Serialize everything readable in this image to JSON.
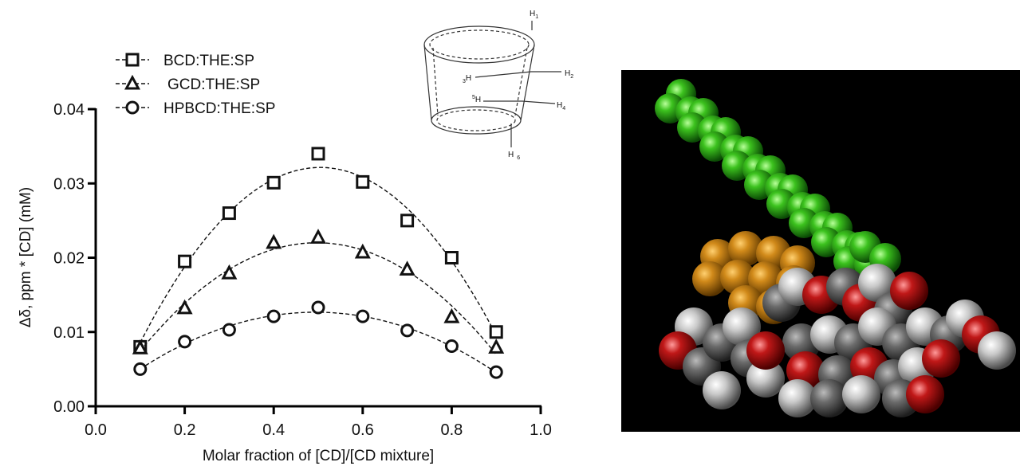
{
  "chart_data": {
    "type": "scatter",
    "xlabel": "Molar fraction of [CD]/[CD mixture]",
    "ylabel": "Δδ, ppm * [CD] (mM)",
    "x": [
      0.1,
      0.2,
      0.3,
      0.4,
      0.5,
      0.6,
      0.7,
      0.8,
      0.9
    ],
    "series": [
      {
        "name": "BCD:THE:SP",
        "marker": "square",
        "color": "#111111",
        "values": [
          0.008,
          0.0195,
          0.026,
          0.0301,
          0.034,
          0.0302,
          0.025,
          0.02,
          0.01
        ]
      },
      {
        "name": "GCD:THE:SP",
        "marker": "triangle",
        "color": "#111111",
        "values": [
          0.0078,
          0.0132,
          0.0179,
          0.022,
          0.0227,
          0.0207,
          0.0184,
          0.012,
          0.0079
        ]
      },
      {
        "name": "HPBCD:THE:SP",
        "marker": "circle",
        "color": "#111111",
        "values": [
          0.005,
          0.0087,
          0.0103,
          0.0121,
          0.0133,
          0.0121,
          0.0102,
          0.0081,
          0.0046
        ]
      }
    ],
    "xlim": [
      0,
      1
    ],
    "ylim": [
      0,
      0.04
    ],
    "xticks": [
      {
        "value": 0,
        "label": "0.0"
      },
      {
        "value": 0.2,
        "label": "0.2"
      },
      {
        "value": 0.4,
        "label": "0.4"
      },
      {
        "value": 0.6,
        "label": "0.6"
      },
      {
        "value": 0.8,
        "label": "0.8"
      },
      {
        "value": 1,
        "label": "1.0"
      }
    ],
    "yticks": [
      {
        "value": 0,
        "label": "0.00"
      },
      {
        "value": 0.01,
        "label": "0.01"
      },
      {
        "value": 0.02,
        "label": "0.02"
      },
      {
        "value": 0.03,
        "label": "0.03"
      },
      {
        "value": 0.04,
        "label": "0.04"
      }
    ],
    "fit_curves": true,
    "legend": "top-left"
  },
  "diagram": {
    "labels": [
      {
        "atom": "H",
        "index": "1"
      },
      {
        "atom": "H",
        "index": "2"
      },
      {
        "atom": "H",
        "index": "3"
      },
      {
        "atom": "H",
        "index": "4"
      },
      {
        "atom": "H",
        "index": "5"
      },
      {
        "atom": "H",
        "index": "6"
      }
    ]
  }
}
